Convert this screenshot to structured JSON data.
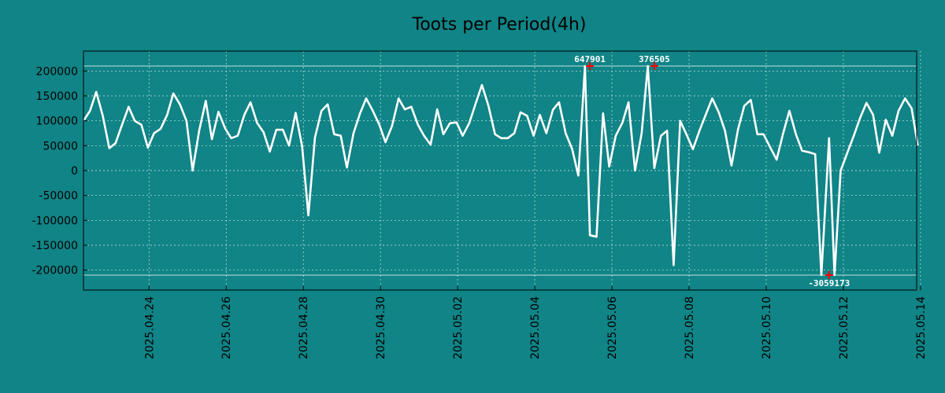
{
  "chart_data": {
    "type": "line",
    "title": "Toots per Period(4h)",
    "xlabel": "",
    "ylabel": "",
    "ylim": [
      -240000,
      240000
    ],
    "clip_high": 210000,
    "clip_low": -210000,
    "grid": true,
    "colors": {
      "background": "#108486",
      "line": "#ffffff",
      "grid": "#cfe8e8",
      "marker": "#ff0000",
      "axis": "#000000"
    },
    "y_ticks": [
      {
        "value": 200000,
        "label": "200000"
      },
      {
        "value": 150000,
        "label": "150000"
      },
      {
        "value": 100000,
        "label": "100000"
      },
      {
        "value": 50000,
        "label": "50000"
      },
      {
        "value": 0,
        "label": "0"
      },
      {
        "value": -50000,
        "label": "-50000"
      },
      {
        "value": -100000,
        "label": "-100000"
      },
      {
        "value": -150000,
        "label": "-150000"
      },
      {
        "value": -200000,
        "label": "-200000"
      }
    ],
    "x_range": [
      22.3,
      43.9
    ],
    "x_ticks": [
      {
        "day": 24,
        "label": "2025.04.24"
      },
      {
        "day": 26,
        "label": "2025.04.26"
      },
      {
        "day": 28,
        "label": "2025.04.28"
      },
      {
        "day": 30,
        "label": "2025.04.30"
      },
      {
        "day": 32,
        "label": "2025.05.02"
      },
      {
        "day": 34,
        "label": "2025.05.04"
      },
      {
        "day": 36,
        "label": "2025.05.06"
      },
      {
        "day": 38,
        "label": "2025.05.08"
      },
      {
        "day": 40,
        "label": "2025.05.10"
      },
      {
        "day": 42,
        "label": "2025.05.12"
      },
      {
        "day": 44,
        "label": "2025.05.14"
      }
    ],
    "annotations": [
      {
        "day": 35.43,
        "value": 210000,
        "label": "647901",
        "position": "above"
      },
      {
        "day": 37.1,
        "value": 210000,
        "label": "376505",
        "position": "above"
      },
      {
        "day": 41.63,
        "value": -210000,
        "label": "-3059173",
        "position": "below"
      }
    ],
    "series": [
      {
        "name": "toots",
        "x": [
          22.3,
          22.47,
          22.63,
          22.8,
          22.97,
          23.13,
          23.3,
          23.47,
          23.63,
          23.8,
          23.97,
          24.13,
          24.3,
          24.47,
          24.63,
          24.8,
          24.97,
          25.13,
          25.3,
          25.47,
          25.63,
          25.8,
          25.97,
          26.13,
          26.3,
          26.47,
          26.63,
          26.8,
          26.97,
          27.13,
          27.3,
          27.47,
          27.63,
          27.8,
          27.97,
          28.13,
          28.3,
          28.47,
          28.63,
          28.8,
          28.97,
          29.13,
          29.3,
          29.47,
          29.63,
          29.8,
          29.97,
          30.13,
          30.3,
          30.47,
          30.63,
          30.8,
          30.97,
          31.13,
          31.3,
          31.47,
          31.63,
          31.8,
          31.97,
          32.13,
          32.3,
          32.47,
          32.63,
          32.8,
          32.97,
          33.13,
          33.3,
          33.47,
          33.63,
          33.8,
          33.97,
          34.13,
          34.3,
          34.47,
          34.63,
          34.8,
          34.97,
          35.13,
          35.3,
          35.43,
          35.6,
          35.77,
          35.93,
          36.1,
          36.27,
          36.43,
          36.6,
          36.77,
          36.93,
          37.1,
          37.27,
          37.43,
          37.6,
          37.77,
          37.93,
          38.1,
          38.27,
          38.43,
          38.6,
          38.77,
          38.93,
          39.1,
          39.27,
          39.43,
          39.6,
          39.77,
          39.93,
          40.1,
          40.27,
          40.43,
          40.6,
          40.77,
          40.93,
          41.1,
          41.27,
          41.43,
          41.63,
          41.77,
          41.93,
          42.1,
          42.27,
          42.43,
          42.6,
          42.77,
          42.93,
          43.1,
          43.27,
          43.43,
          43.6,
          43.77,
          43.93
        ],
        "values": [
          100000,
          120000,
          158000,
          110000,
          45000,
          55000,
          92000,
          128000,
          100000,
          92000,
          46000,
          75000,
          84000,
          112000,
          155000,
          133000,
          100000,
          0,
          80000,
          140000,
          63000,
          118000,
          85000,
          65000,
          70000,
          112000,
          137000,
          96000,
          77000,
          38000,
          82000,
          82000,
          50000,
          116000,
          48000,
          -90000,
          66000,
          120000,
          133000,
          73000,
          70000,
          6000,
          75000,
          115000,
          145000,
          120000,
          92000,
          57000,
          90000,
          145000,
          123000,
          128000,
          92000,
          70000,
          52000,
          123000,
          73000,
          95000,
          97000,
          70000,
          95000,
          135000,
          172000,
          130000,
          73000,
          65000,
          65000,
          75000,
          117000,
          110000,
          70000,
          112000,
          75000,
          122000,
          137000,
          75000,
          43000,
          -10000,
          210000,
          -130000,
          -133000,
          115000,
          8000,
          70000,
          96000,
          137000,
          0,
          75000,
          210000,
          5000,
          70000,
          80000,
          -190000,
          100000,
          73000,
          43000,
          80000,
          112000,
          145000,
          117000,
          80000,
          10000,
          83000,
          130000,
          142000,
          73000,
          73000,
          47000,
          22000,
          72000,
          120000,
          73000,
          40000,
          37000,
          33000,
          -210000,
          65000,
          -210000,
          0,
          35000,
          70000,
          105000,
          136000,
          112000,
          36000,
          102000,
          70000,
          120000,
          145000,
          125000,
          50000
        ]
      }
    ]
  }
}
